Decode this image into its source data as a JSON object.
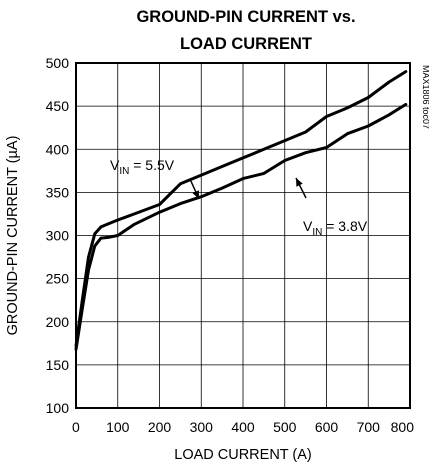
{
  "chart_data": {
    "type": "line",
    "title_line1": "GROUND-PIN CURRENT vs.",
    "title_line2": "LOAD CURRENT",
    "xlabel": "LOAD CURRENT (A)",
    "ylabel": "GROUND-PIN CURRENT (µA)",
    "xlim": [
      0,
      800
    ],
    "ylim": [
      100,
      500
    ],
    "x_ticks": [
      0,
      100,
      200,
      300,
      400,
      500,
      600,
      700,
      800
    ],
    "y_ticks": [
      100,
      150,
      200,
      250,
      300,
      350,
      400,
      450,
      500
    ],
    "grid": true,
    "legend": "none",
    "figure_code": "MAX1806 toc07",
    "series": [
      {
        "annotation": {
          "prefix": "V",
          "sub": "IN",
          "suffix": " = 5.5V"
        },
        "points": [
          [
            0,
            172
          ],
          [
            15,
            225
          ],
          [
            30,
            275
          ],
          [
            45,
            302
          ],
          [
            60,
            310
          ],
          [
            80,
            314
          ],
          [
            100,
            318
          ],
          [
            140,
            325
          ],
          [
            200,
            336
          ],
          [
            250,
            360
          ],
          [
            300,
            370
          ],
          [
            350,
            380
          ],
          [
            400,
            390
          ],
          [
            450,
            400
          ],
          [
            500,
            410
          ],
          [
            550,
            420
          ],
          [
            600,
            438
          ],
          [
            650,
            448
          ],
          [
            700,
            460
          ],
          [
            750,
            478
          ],
          [
            790,
            490
          ]
        ]
      },
      {
        "annotation": {
          "prefix": "V",
          "sub": "IN",
          "suffix": " = 3.8V"
        },
        "points": [
          [
            0,
            168
          ],
          [
            15,
            215
          ],
          [
            30,
            260
          ],
          [
            45,
            288
          ],
          [
            60,
            297
          ],
          [
            80,
            298
          ],
          [
            100,
            300
          ],
          [
            140,
            313
          ],
          [
            200,
            327
          ],
          [
            250,
            337
          ],
          [
            300,
            345
          ],
          [
            350,
            355
          ],
          [
            400,
            366
          ],
          [
            450,
            372
          ],
          [
            500,
            387
          ],
          [
            550,
            396
          ],
          [
            600,
            402
          ],
          [
            650,
            418
          ],
          [
            700,
            427
          ],
          [
            750,
            440
          ],
          [
            790,
            452
          ]
        ]
      }
    ]
  }
}
